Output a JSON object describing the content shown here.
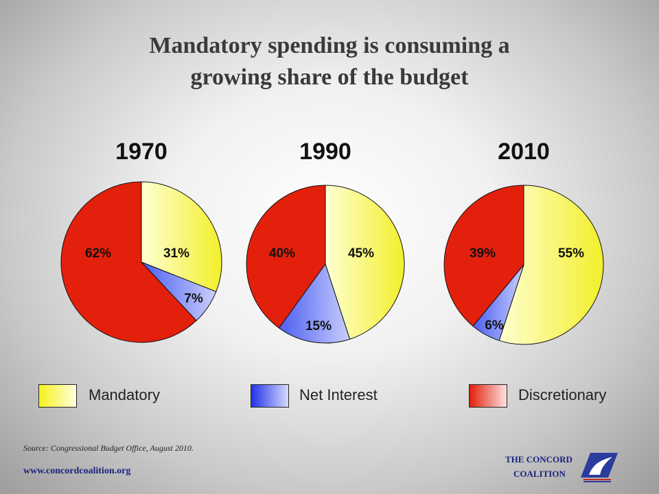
{
  "title_line1": "Mandatory spending is consuming a",
  "title_line2": "growing share of the budget",
  "chart_data": {
    "type": "pie",
    "title": "Mandatory spending is consuming a growing share of the budget",
    "charts": [
      {
        "year": "1970",
        "slices": [
          {
            "category": "Mandatory",
            "value": 31,
            "label": "31%"
          },
          {
            "category": "Net Interest",
            "value": 7,
            "label": "7%"
          },
          {
            "category": "Discretionary",
            "value": 62,
            "label": "62%"
          }
        ]
      },
      {
        "year": "1990",
        "slices": [
          {
            "category": "Mandatory",
            "value": 45,
            "label": "45%"
          },
          {
            "category": "Net Interest",
            "value": 15,
            "label": "15%"
          },
          {
            "category": "Discretionary",
            "value": 40,
            "label": "40%"
          }
        ]
      },
      {
        "year": "2010",
        "slices": [
          {
            "category": "Mandatory",
            "value": 55,
            "label": "55%"
          },
          {
            "category": "Net Interest",
            "value": 6,
            "label": "6%"
          },
          {
            "category": "Discretionary",
            "value": 39,
            "label": "39%"
          }
        ]
      }
    ],
    "legend": [
      "Mandatory",
      "Net Interest",
      "Discretionary"
    ],
    "legend_placement": "bottom",
    "colors": {
      "Mandatory": "#f2ef2a",
      "Net Interest": "#3a4ff0",
      "Discretionary": "#e3200b"
    }
  },
  "source": "Source: Congressional Budget Office, August 2010.",
  "url": "www.concordcoalition.org",
  "logo": {
    "line1": "THE CONCORD",
    "line2": "COALITION"
  }
}
